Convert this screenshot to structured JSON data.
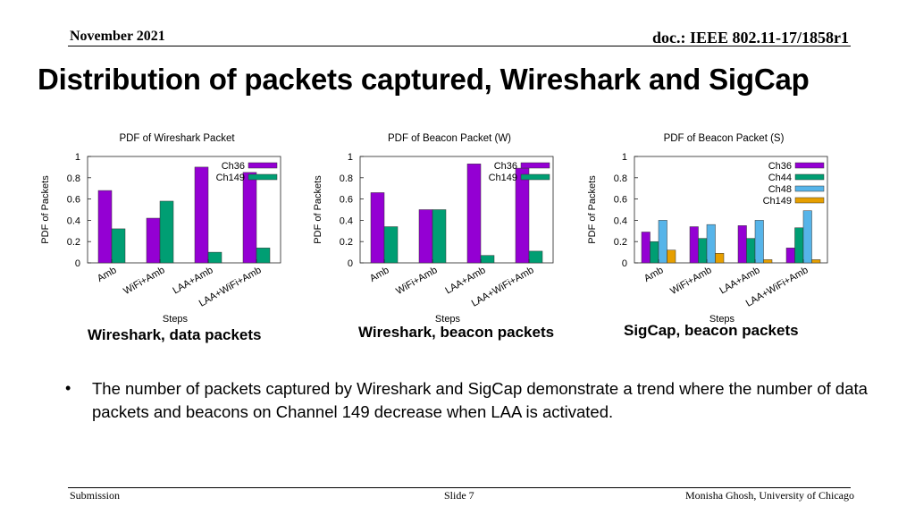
{
  "header": {
    "date": "November 2021",
    "doc": "doc.: IEEE 802.11-17/1858r1"
  },
  "title": "Distribution of packets captured, Wireshark and SigCap",
  "captions": [
    "Wireshark, data packets",
    "Wireshark, beacon packets",
    "SigCap, beacon packets"
  ],
  "bullet": {
    "marker": "•",
    "text": "The number of packets captured by Wireshark and SigCap demonstrate a trend where the number of data packets and beacons on Channel 149 decrease when LAA is activated."
  },
  "footer": {
    "left": "Submission",
    "center": "Slide 7",
    "right": "Monisha Ghosh, University of Chicago"
  },
  "colors": {
    "Ch36": "#9400d3",
    "Ch44": "#009e73",
    "Ch48": "#56b4e9",
    "Ch149": "#e69f00",
    "Ch149_green": "#009e73"
  },
  "chart_data": [
    {
      "type": "bar",
      "title": "PDF of Wireshark Packet",
      "xlabel": "Steps",
      "ylabel": "PDF of Packets",
      "ylim": [
        0,
        1
      ],
      "yticks": [
        "0",
        "0.2",
        "0.4",
        "0.6",
        "0.8",
        "1"
      ],
      "categories": [
        "Amb",
        "WiFi+Amb",
        "LAA+Amb",
        "LAA+WiFi+Amb"
      ],
      "legend_position": "top-right",
      "series": [
        {
          "name": "Ch36",
          "color": "#9400d3",
          "values": [
            0.68,
            0.42,
            0.9,
            0.85
          ]
        },
        {
          "name": "Ch149",
          "color": "#009e73",
          "values": [
            0.32,
            0.58,
            0.1,
            0.14
          ]
        }
      ]
    },
    {
      "type": "bar",
      "title": "PDF of Beacon Packet (W)",
      "xlabel": "Steps",
      "ylabel": "PDF of Packets",
      "ylim": [
        0,
        1
      ],
      "yticks": [
        "0",
        "0.2",
        "0.4",
        "0.6",
        "0.8",
        "1"
      ],
      "categories": [
        "Amb",
        "WiFi+Amb",
        "LAA+Amb",
        "LAA+WiFi+Amb"
      ],
      "legend_position": "top-right",
      "series": [
        {
          "name": "Ch36",
          "color": "#9400d3",
          "values": [
            0.66,
            0.5,
            0.93,
            0.89
          ]
        },
        {
          "name": "Ch149",
          "color": "#009e73",
          "values": [
            0.34,
            0.5,
            0.07,
            0.11
          ]
        }
      ]
    },
    {
      "type": "bar",
      "title": "PDF of Beacon Packet (S)",
      "xlabel": "Steps",
      "ylabel": "PDF of Packets",
      "ylim": [
        0,
        1
      ],
      "yticks": [
        "0",
        "0.2",
        "0.4",
        "0.6",
        "0.8",
        "1"
      ],
      "categories": [
        "Amb",
        "WiFi+Amb",
        "LAA+Amb",
        "LAA+WiFi+Amb"
      ],
      "legend_position": "top-right",
      "series": [
        {
          "name": "Ch36",
          "color": "#9400d3",
          "values": [
            0.29,
            0.34,
            0.35,
            0.14
          ]
        },
        {
          "name": "Ch44",
          "color": "#009e73",
          "values": [
            0.2,
            0.23,
            0.23,
            0.33
          ]
        },
        {
          "name": "Ch48",
          "color": "#56b4e9",
          "values": [
            0.4,
            0.36,
            0.4,
            0.49
          ]
        },
        {
          "name": "Ch149",
          "color": "#e69f00",
          "values": [
            0.12,
            0.09,
            0.03,
            0.03
          ]
        }
      ]
    }
  ]
}
